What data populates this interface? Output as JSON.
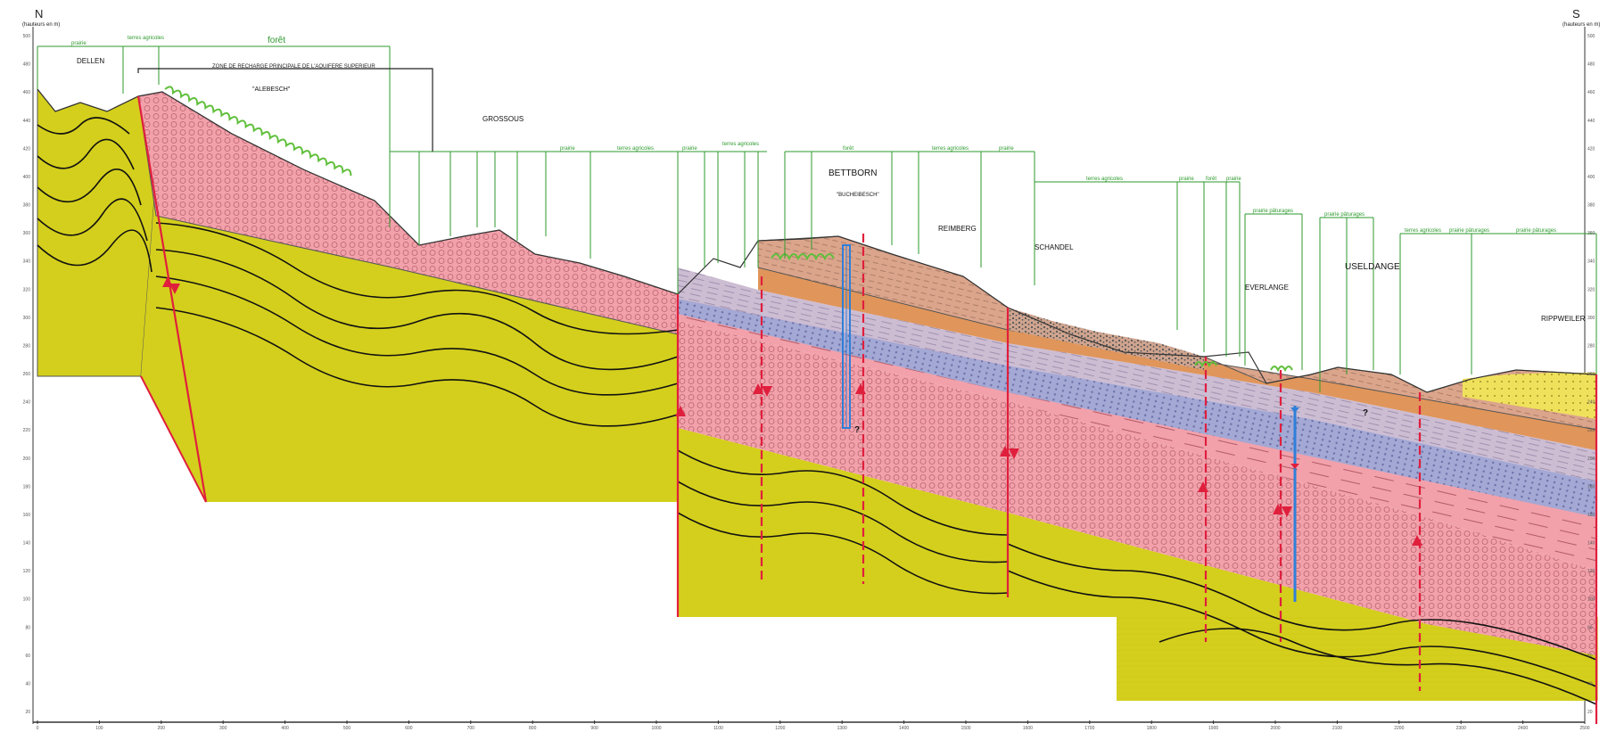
{
  "orientation": {
    "north": "N",
    "south": "S",
    "north_unit": "(hauteurs en m)",
    "south_unit": "(hauteurs en m)"
  },
  "zone_label": "ZONE DE RECHARGE PRINCIPALE DE L'AQUIFERE SUPERIEUR",
  "places": {
    "dellen": "DELLEN",
    "alebesch": "\"ALEBESCH\"",
    "grossous": "GROSSOUS",
    "bettborn": "BETTBORN",
    "bucheibesch": "\"BUCHEIBESCH\"",
    "reimberg": "REIMBERG",
    "schandel": "SCHANDEL",
    "everlange": "EVERLANGE",
    "useldange": "USELDANGE",
    "rippweiler": "RIPPWEILER"
  },
  "land_use": {
    "foret": "forêt",
    "prairie_1": "prairie",
    "terres_agricoles_1": "terres agricoles",
    "prairie_2": "prairie",
    "terres_agricoles_2": "terres agricoles",
    "prairie_3": "prairie",
    "terres_agricoles_3": "terres agricoles",
    "foret_2": "forêt",
    "terres_agricoles_4": "terres agricoles",
    "prairie_4": "prairie",
    "terres_agricoles_5": "terres agricoles",
    "prairie_5": "prairie",
    "foret_3": "forêt",
    "prairie_6": "prairie",
    "prairie_paturages_1": "prairie pâturages",
    "prairie_paturages_2": "prairie pâturages",
    "terres_agricoles_6": "terres agricoles",
    "prairie_paturages_3": "prairie pâturages",
    "prairie_paturages_4": "prairie pâturages"
  },
  "unknown_mark": "?",
  "x_ticks": [
    "0",
    "100",
    "200",
    "300",
    "400",
    "500",
    "600",
    "700",
    "800",
    "900",
    "1000",
    "1100",
    "1200",
    "1300",
    "1400",
    "1500",
    "1600",
    "1700",
    "1800",
    "1900",
    "2000",
    "2100",
    "2200",
    "2300",
    "2400",
    "2500"
  ],
  "y_ticks": [
    "500",
    "480",
    "460",
    "440",
    "420",
    "400",
    "380",
    "360",
    "340",
    "320",
    "300",
    "280",
    "260",
    "240",
    "220",
    "200",
    "180",
    "160",
    "140",
    "120",
    "100",
    "80",
    "60",
    "40",
    "20"
  ],
  "colors": {
    "bedrock": "#d4cf1c",
    "sandstone": "#f2a1ab",
    "marl_grey": "#c9bcd1",
    "marl_blue": "#a4a8d4",
    "marl_orange": "#e0955a",
    "marl_brown": "#d9a88b",
    "fault": "#e01f3d",
    "vegetation": "#5fbf3a",
    "land_use_line": "#2e9a2e",
    "borehole": "#2f7fd9"
  }
}
